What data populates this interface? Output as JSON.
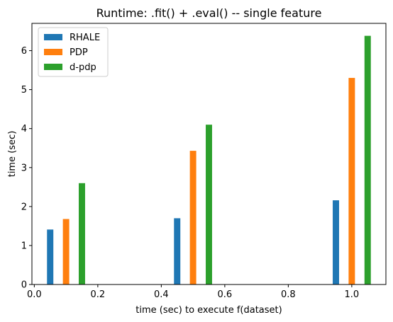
{
  "chart_data": {
    "type": "bar",
    "title": "Runtime: .fit() + .eval() -- single feature",
    "xlabel": "time (sec) to execute f(dataset)",
    "ylabel": "time (sec)",
    "xlim": [
      -0.0075,
      1.1075
    ],
    "ylim": [
      0,
      6.7
    ],
    "xticks": [
      0.0,
      0.2,
      0.4,
      0.6,
      0.8,
      1.0
    ],
    "xtick_labels": [
      "0.0",
      "0.2",
      "0.4",
      "0.6",
      "0.8",
      "1.0"
    ],
    "yticks": [
      0,
      1,
      2,
      3,
      4,
      5,
      6
    ],
    "ytick_labels": [
      "0",
      "1",
      "2",
      "3",
      "4",
      "5",
      "6"
    ],
    "bar_width": 0.02,
    "grid": false,
    "legend_position": "top-left",
    "series": [
      {
        "name": "RHALE",
        "color": "#1f77b4",
        "x": [
          0.05,
          0.45,
          0.95
        ],
        "values": [
          1.41,
          1.7,
          2.16
        ]
      },
      {
        "name": "PDP",
        "color": "#ff7f0e",
        "x": [
          0.1,
          0.5,
          1.0
        ],
        "values": [
          1.68,
          3.43,
          5.3
        ]
      },
      {
        "name": "d-pdp",
        "color": "#2ca02c",
        "x": [
          0.15,
          0.55,
          1.05
        ],
        "values": [
          2.6,
          4.1,
          6.38
        ]
      }
    ]
  }
}
